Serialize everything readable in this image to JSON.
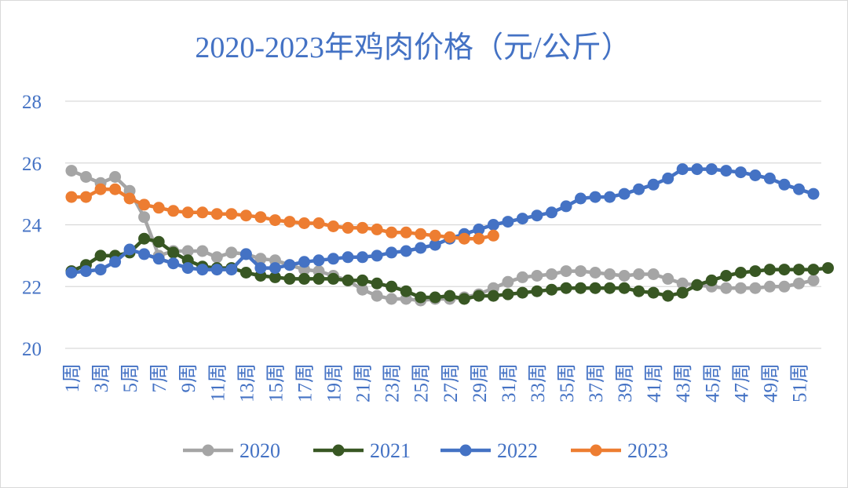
{
  "chart_data": {
    "type": "line",
    "title": "2020-2023年鸡肉价格（元/公斤）",
    "x_tick_labels": [
      "1周",
      "3周",
      "5周",
      "7周",
      "9周",
      "11周",
      "13周",
      "15周",
      "17周",
      "19周",
      "21周",
      "23周",
      "25周",
      "27周",
      "29周",
      "31周",
      "33周",
      "35周",
      "37周",
      "39周",
      "41周",
      "43周",
      "45周",
      "47周",
      "49周",
      "51周"
    ],
    "x_range": [
      1,
      52
    ],
    "ylim": [
      20,
      28
    ],
    "y_ticks": [
      20,
      22,
      24,
      26,
      28
    ],
    "grid": "horizontal",
    "legend_position": "bottom",
    "series": [
      {
        "name": "2020",
        "color": "#a5a5a5",
        "values": [
          25.75,
          25.55,
          25.35,
          25.55,
          25.1,
          24.25,
          23.0,
          23.15,
          23.15,
          23.15,
          22.95,
          23.1,
          23.05,
          22.9,
          22.85,
          22.7,
          22.55,
          22.5,
          22.35,
          22.2,
          21.9,
          21.7,
          21.6,
          21.6,
          21.55,
          21.6,
          21.6,
          21.65,
          21.75,
          21.95,
          22.15,
          22.3,
          22.35,
          22.4,
          22.5,
          22.5,
          22.45,
          22.4,
          22.35,
          22.4,
          22.4,
          22.25,
          22.1,
          22.05,
          22.0,
          21.95,
          21.95,
          21.95,
          22.0,
          22.0,
          22.1,
          22.2
        ]
      },
      {
        "name": "2021",
        "color": "#385723",
        "values": [
          22.5,
          22.7,
          23.0,
          23.0,
          23.1,
          23.55,
          23.45,
          23.1,
          22.85,
          22.65,
          22.6,
          22.6,
          22.45,
          22.35,
          22.3,
          22.25,
          22.25,
          22.25,
          22.25,
          22.2,
          22.2,
          22.1,
          22.0,
          21.85,
          21.65,
          21.65,
          21.7,
          21.6,
          21.7,
          21.7,
          21.75,
          21.8,
          21.85,
          21.9,
          21.95,
          21.95,
          21.95,
          21.95,
          21.95,
          21.85,
          21.8,
          21.7,
          21.8,
          22.05,
          22.2,
          22.35,
          22.45,
          22.5,
          22.55,
          22.55,
          22.55,
          22.55,
          22.6
        ]
      },
      {
        "name": "2022",
        "color": "#4472c4",
        "values": [
          22.45,
          22.5,
          22.55,
          22.8,
          23.2,
          23.05,
          22.9,
          22.75,
          22.6,
          22.55,
          22.55,
          22.55,
          23.05,
          22.6,
          22.6,
          22.7,
          22.8,
          22.85,
          22.9,
          22.95,
          22.95,
          23.0,
          23.1,
          23.15,
          23.25,
          23.35,
          23.55,
          23.7,
          23.85,
          24.0,
          24.1,
          24.2,
          24.3,
          24.4,
          24.6,
          24.85,
          24.9,
          24.9,
          25.0,
          25.15,
          25.3,
          25.5,
          25.8,
          25.8,
          25.8,
          25.75,
          25.7,
          25.6,
          25.5,
          25.3,
          25.15,
          25.0
        ]
      },
      {
        "name": "2023",
        "color": "#ed7d31",
        "values": [
          24.9,
          24.9,
          25.15,
          25.15,
          24.85,
          24.65,
          24.55,
          24.45,
          24.4,
          24.4,
          24.35,
          24.35,
          24.3,
          24.25,
          24.15,
          24.1,
          24.05,
          24.05,
          23.95,
          23.9,
          23.9,
          23.85,
          23.75,
          23.75,
          23.7,
          23.65,
          23.6,
          23.55,
          23.55,
          23.65
        ]
      }
    ]
  }
}
